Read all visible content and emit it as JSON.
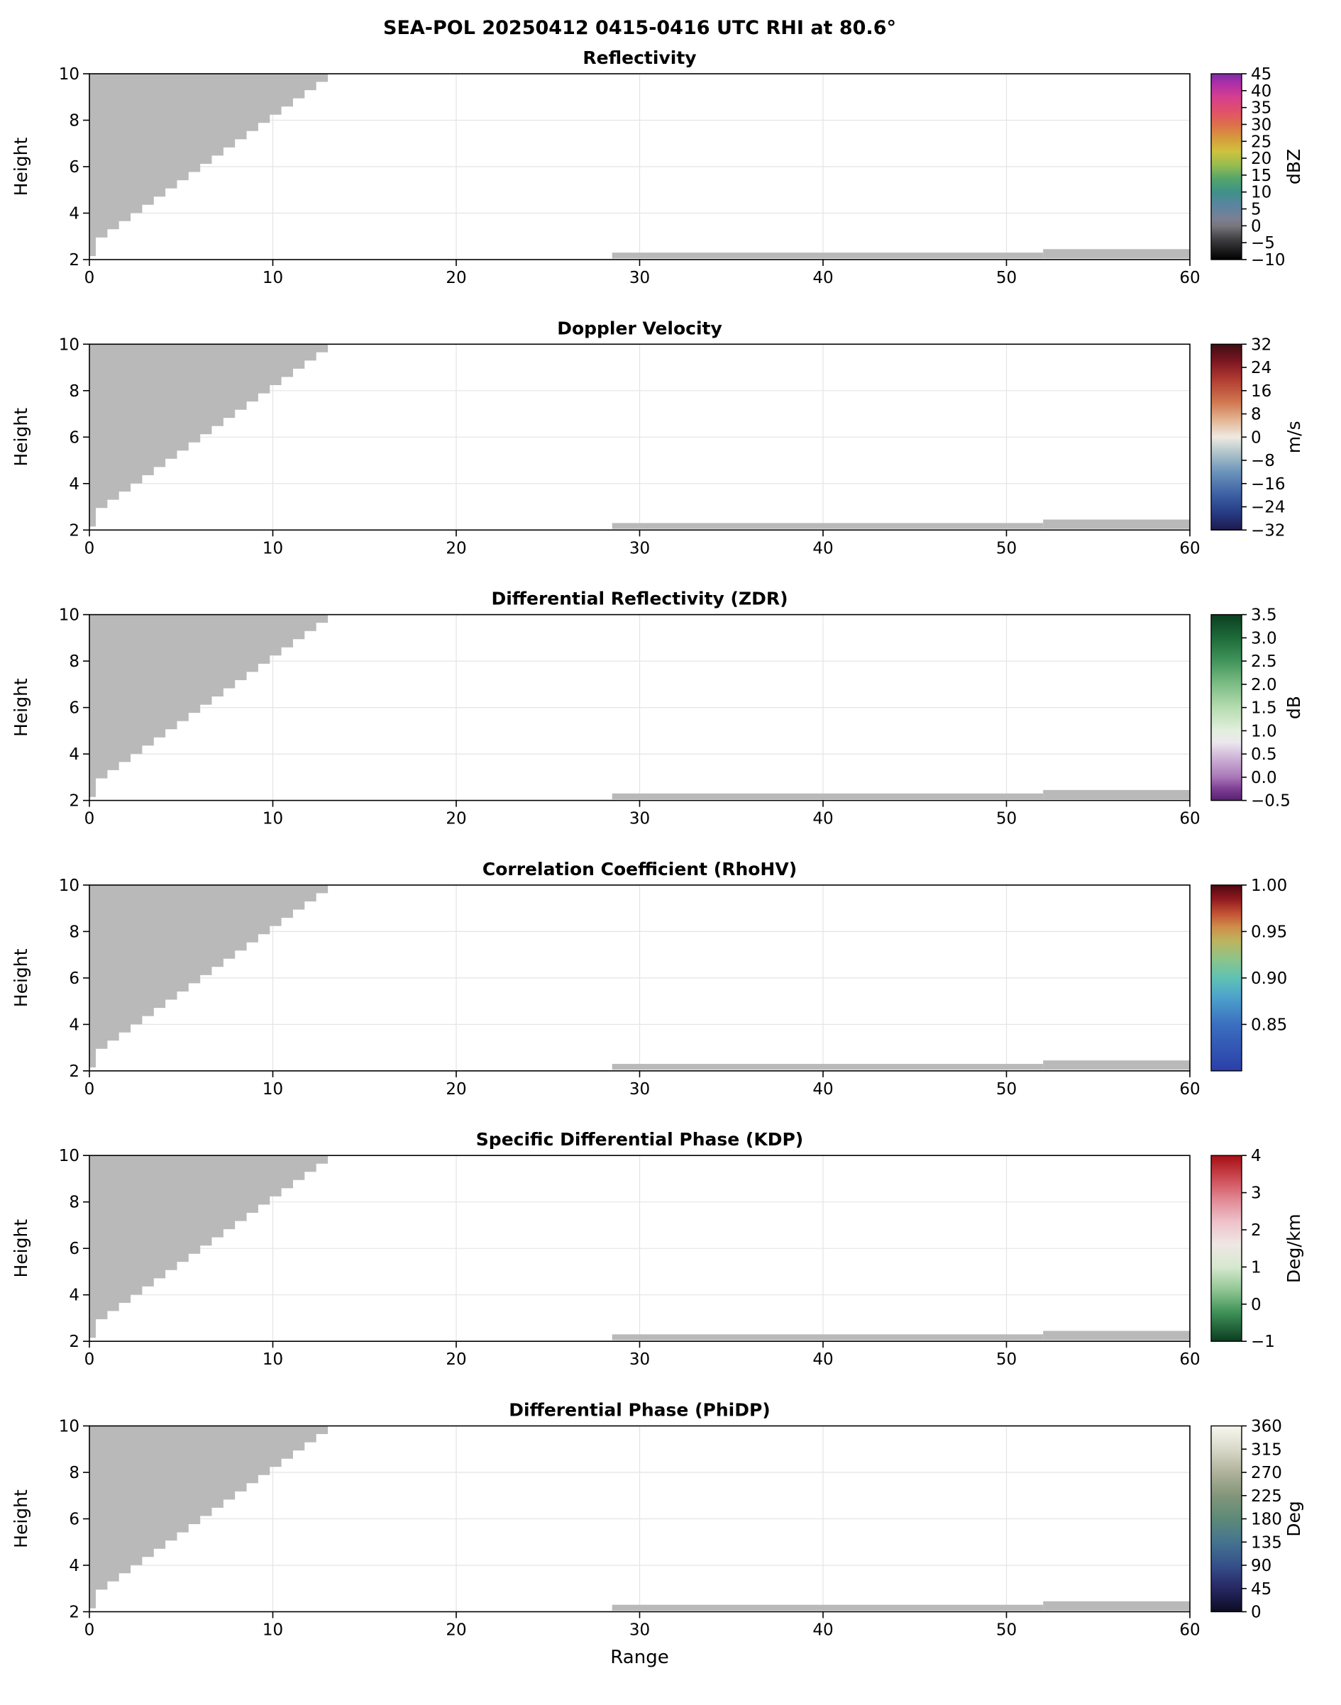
{
  "figure": {
    "suptitle": "SEA-POL 20250412 0415-0416 UTC RHI at 80.6°",
    "xlabel": "Range",
    "ylabel": "Height"
  },
  "chart_data": {
    "type": "heatmap",
    "title": "SEA-POL 20250412 0415-0416 UTC RHI at 80.6°",
    "xlabel": "Range",
    "ylabel": "Height",
    "xlim": [
      0,
      60
    ],
    "ylim": [
      2,
      10
    ],
    "xticks": [
      0,
      10,
      20,
      30,
      40,
      50,
      60
    ],
    "xtick_labels": [
      "0",
      "10",
      "20",
      "30",
      "40",
      "50",
      "60"
    ],
    "yticks": [
      2,
      4,
      6,
      8,
      10
    ],
    "ytick_labels": [
      "2",
      "4",
      "6",
      "8",
      "10"
    ],
    "grid": true,
    "grid_color": "#e4e4e4",
    "mask": {
      "color": "#b9b9b9",
      "wedge": {
        "top_y": 10,
        "left_x": 0,
        "diag_from": [
          0.35,
          2.95
        ],
        "diag_to": [
          13.0,
          10.0
        ],
        "step_count": 20,
        "spike": {
          "x0": 0,
          "x1": 0.35,
          "y0": 2.15
        }
      },
      "strips": [
        {
          "x0": 28.5,
          "x1": 52.0,
          "y0": 2.05,
          "y1": 2.3
        },
        {
          "x0": 52.0,
          "x1": 60.0,
          "y0": 2.05,
          "y1": 2.45
        }
      ]
    },
    "panels": [
      {
        "title": "Reflectivity",
        "units": "dBZ",
        "vmin": -10,
        "vmax": 45,
        "cbar_tick_values": [
          45,
          40,
          35,
          30,
          25,
          20,
          15,
          10,
          5,
          0,
          -5,
          -10
        ],
        "cbar_tick_labels": [
          "45",
          "40",
          "35",
          "30",
          "25",
          "20",
          "15",
          "10",
          "5",
          "0",
          "−5",
          "−10"
        ],
        "cbar_stops": [
          {
            "v": 45,
            "c": "#7a2ea6"
          },
          {
            "v": 42,
            "c": "#b02fa8"
          },
          {
            "v": 38,
            "c": "#d63f8e"
          },
          {
            "v": 34,
            "c": "#e0506a"
          },
          {
            "v": 30,
            "c": "#dd6f4c"
          },
          {
            "v": 26,
            "c": "#d69a3c"
          },
          {
            "v": 22,
            "c": "#cfc23e"
          },
          {
            "v": 18,
            "c": "#97bd4f"
          },
          {
            "v": 14,
            "c": "#55a56b"
          },
          {
            "v": 10,
            "c": "#3f9288"
          },
          {
            "v": 6,
            "c": "#5b84a0"
          },
          {
            "v": 2,
            "c": "#7b7f93"
          },
          {
            "v": 0,
            "c": "#77777d"
          },
          {
            "v": -4,
            "c": "#3f3f42"
          },
          {
            "v": -10,
            "c": "#000000"
          }
        ]
      },
      {
        "title": "Doppler Velocity",
        "units": "m/s",
        "vmin": -32,
        "vmax": 32,
        "cbar_tick_values": [
          32,
          24,
          16,
          8,
          0,
          -8,
          -16,
          -24,
          -32
        ],
        "cbar_tick_labels": [
          "32",
          "24",
          "16",
          "8",
          "0",
          "−8",
          "−16",
          "−24",
          "−32"
        ],
        "cbar_stops": [
          {
            "v": 32,
            "c": "#3f0d12"
          },
          {
            "v": 26,
            "c": "#7c1722"
          },
          {
            "v": 20,
            "c": "#b13a31"
          },
          {
            "v": 12,
            "c": "#d07850"
          },
          {
            "v": 6,
            "c": "#e3b491"
          },
          {
            "v": 0,
            "c": "#eeeae2"
          },
          {
            "v": -6,
            "c": "#a9c0c8"
          },
          {
            "v": -12,
            "c": "#6b94bb"
          },
          {
            "v": -20,
            "c": "#3c5fa3"
          },
          {
            "v": -26,
            "c": "#273c85"
          },
          {
            "v": -32,
            "c": "#1d1a4e"
          }
        ]
      },
      {
        "title": "Differential Reflectivity (ZDR)",
        "units": "dB",
        "vmin": -0.5,
        "vmax": 3.5,
        "cbar_tick_values": [
          3.5,
          3.0,
          2.5,
          2.0,
          1.5,
          1.0,
          0.5,
          0.0,
          -0.5
        ],
        "cbar_tick_labels": [
          "3.5",
          "3.0",
          "2.5",
          "2.0",
          "1.5",
          "1.0",
          "0.5",
          "0.0",
          "−0.5"
        ],
        "cbar_stops": [
          {
            "v": 3.5,
            "c": "#0b3d20"
          },
          {
            "v": 3.0,
            "c": "#1e6b3a"
          },
          {
            "v": 2.5,
            "c": "#41945b"
          },
          {
            "v": 2.0,
            "c": "#7dbd85"
          },
          {
            "v": 1.5,
            "c": "#b5dcb0"
          },
          {
            "v": 1.0,
            "c": "#e2efdd"
          },
          {
            "v": 0.75,
            "c": "#ece7ee"
          },
          {
            "v": 0.5,
            "c": "#d5c0dd"
          },
          {
            "v": 0.0,
            "c": "#a977b8"
          },
          {
            "v": -0.25,
            "c": "#7e3f94"
          },
          {
            "v": -0.5,
            "c": "#572070"
          }
        ]
      },
      {
        "title": "Correlation Coefficient (RhoHV)",
        "units": "",
        "vmin": 0.8,
        "vmax": 1.0,
        "cbar_tick_values": [
          1.0,
          0.95,
          0.9,
          0.85
        ],
        "cbar_tick_labels": [
          "1.00",
          "0.95",
          "0.90",
          "0.85"
        ],
        "cbar_stops": [
          {
            "v": 1.0,
            "c": "#4f0610"
          },
          {
            "v": 0.985,
            "c": "#8f1a1f"
          },
          {
            "v": 0.97,
            "c": "#c24f33"
          },
          {
            "v": 0.955,
            "c": "#cf8d49"
          },
          {
            "v": 0.94,
            "c": "#bdb45e"
          },
          {
            "v": 0.92,
            "c": "#8cc48b"
          },
          {
            "v": 0.9,
            "c": "#5fc2b2"
          },
          {
            "v": 0.88,
            "c": "#4da3cc"
          },
          {
            "v": 0.85,
            "c": "#3b6fc0"
          },
          {
            "v": 0.8,
            "c": "#2b3fa8"
          }
        ]
      },
      {
        "title": "Specific Differential Phase (KDP)",
        "units": "Deg/km",
        "vmin": -1,
        "vmax": 4,
        "cbar_tick_values": [
          4,
          3,
          2,
          1,
          0,
          -1
        ],
        "cbar_tick_labels": [
          "4",
          "3",
          "2",
          "1",
          "0",
          "−1"
        ],
        "cbar_stops": [
          {
            "v": 4,
            "c": "#a50f15"
          },
          {
            "v": 3.4,
            "c": "#cc4a52"
          },
          {
            "v": 2.8,
            "c": "#e28a96"
          },
          {
            "v": 2.2,
            "c": "#eec3cb"
          },
          {
            "v": 1.6,
            "c": "#efe7e4"
          },
          {
            "v": 1.0,
            "c": "#d6e8cf"
          },
          {
            "v": 0.4,
            "c": "#93c795"
          },
          {
            "v": -0.2,
            "c": "#41945b"
          },
          {
            "v": -1,
            "c": "#0b3d20"
          }
        ]
      },
      {
        "title": "Differential Phase (PhiDP)",
        "units": "Deg",
        "vmin": 0,
        "vmax": 360,
        "cbar_tick_values": [
          360,
          315,
          270,
          225,
          180,
          135,
          90,
          45,
          0
        ],
        "cbar_tick_labels": [
          "360",
          "315",
          "270",
          "225",
          "180",
          "135",
          "90",
          "45",
          "0"
        ],
        "cbar_stops": [
          {
            "v": 360,
            "c": "#f7f7ef"
          },
          {
            "v": 315,
            "c": "#d9d9c9"
          },
          {
            "v": 270,
            "c": "#b0b29b"
          },
          {
            "v": 225,
            "c": "#83957a"
          },
          {
            "v": 180,
            "c": "#5d8a78"
          },
          {
            "v": 135,
            "c": "#45748f"
          },
          {
            "v": 90,
            "c": "#35508b"
          },
          {
            "v": 45,
            "c": "#272763"
          },
          {
            "v": 0,
            "c": "#0c0c22"
          }
        ]
      }
    ]
  }
}
